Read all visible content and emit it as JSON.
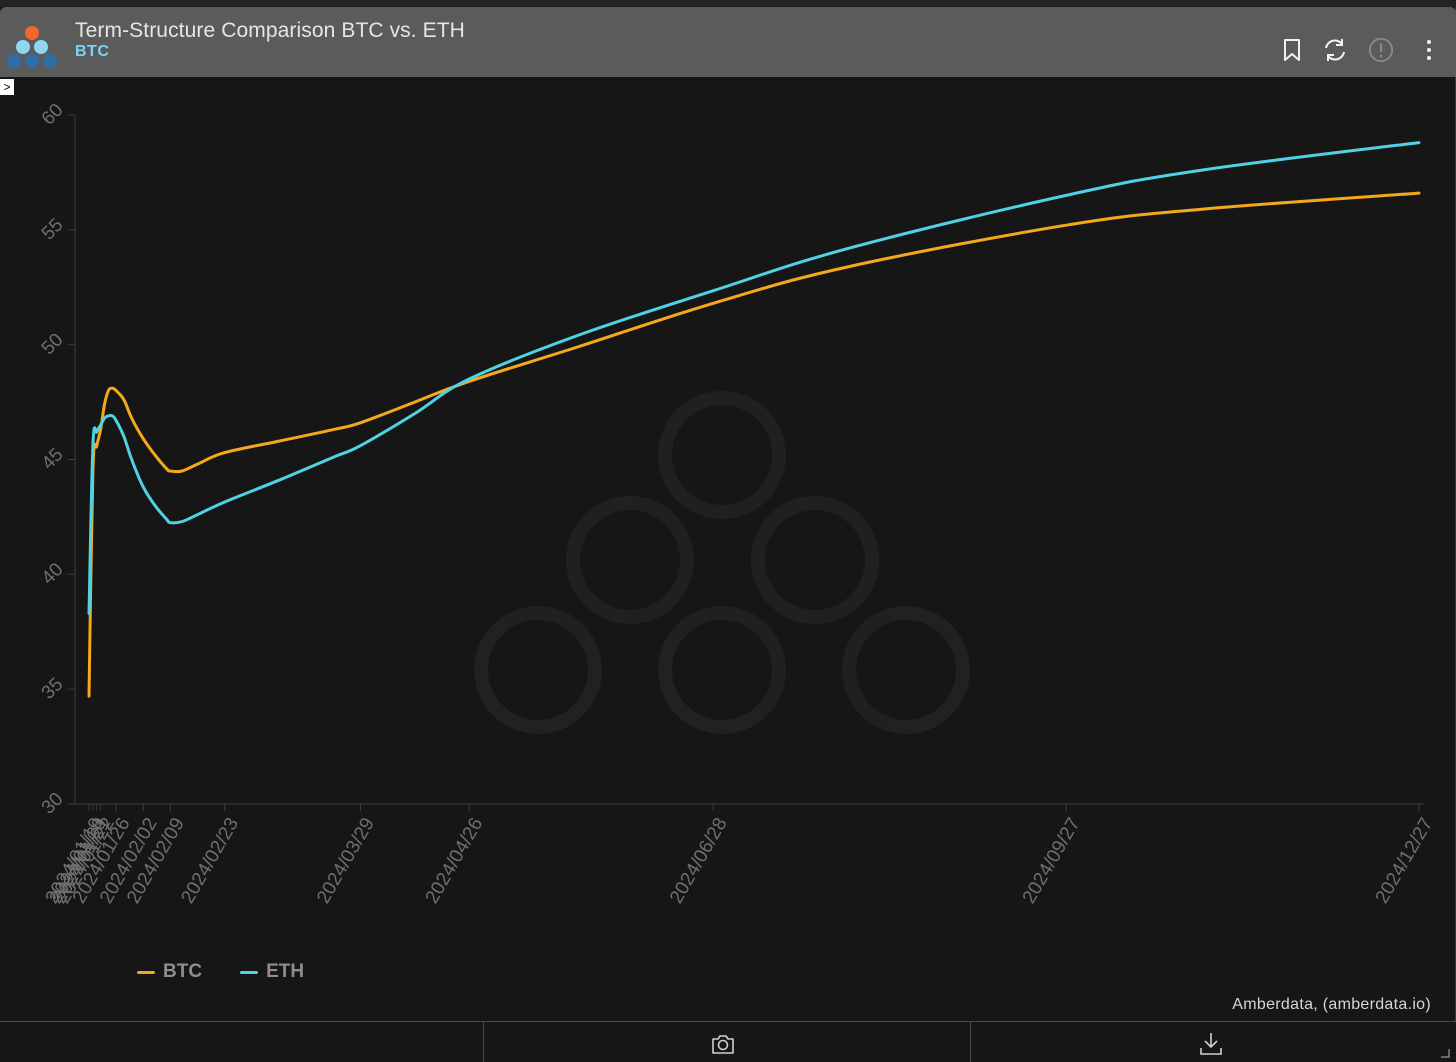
{
  "header": {
    "title": "Term-Structure Comparison BTC vs. ETH",
    "subtitle": "BTC"
  },
  "icons": {
    "logo": "amberdata-logo-icon",
    "bookmark": "bookmark-icon",
    "refresh": "refresh-icon",
    "info": "alert-circle-icon",
    "menu": "more-vertical-icon",
    "camera": "camera-icon",
    "download": "download-icon",
    "toggle": "chevron-right-icon"
  },
  "toggle_glyph": ">",
  "credit": "Amberdata, (amberdata.io)",
  "colors": {
    "btc": "#f5a81c",
    "eth": "#4fd2e3",
    "background": "#161616",
    "header": "#5b5b5b",
    "axis_text": "#6f6f6f"
  },
  "chart_data": {
    "type": "line",
    "title": "Term-Structure Comparison BTC vs. ETH",
    "xlabel": "",
    "ylabel": "",
    "ylim": [
      30,
      60
    ],
    "yticks": [
      30,
      35,
      40,
      45,
      50,
      55,
      60
    ],
    "x_dense_ticks": [
      "2024/01/19",
      "2024/01/20",
      "2024/01/21",
      "2024/01/22",
      "2024/01/26"
    ],
    "x_ticks": [
      "2024/02/02",
      "2024/02/09",
      "2024/02/23",
      "2024/03/29",
      "2024/04/26",
      "2024/06/28",
      "2024/09/27",
      "2024/12/27"
    ],
    "legend_position": "bottom-left",
    "grid": false,
    "series": [
      {
        "name": "BTC",
        "color": "#f5a81c",
        "points": [
          [
            "2024/01/19",
            34.7
          ],
          [
            "2024/01/20",
            44.5
          ],
          [
            "2024/01/21",
            45.6
          ],
          [
            "2024/01/22",
            46.3
          ],
          [
            "2024/01/23",
            47.4
          ],
          [
            "2024/01/24",
            48.0
          ],
          [
            "2024/01/25",
            48.1
          ],
          [
            "2024/01/26",
            48.0
          ],
          [
            "2024/01/28",
            47.6
          ],
          [
            "2024/01/30",
            46.8
          ],
          [
            "2024/02/02",
            45.9
          ],
          [
            "2024/02/05",
            45.2
          ],
          [
            "2024/02/08",
            44.6
          ],
          [
            "2024/02/09",
            44.5
          ],
          [
            "2024/02/12",
            44.5
          ],
          [
            "2024/02/16",
            44.8
          ],
          [
            "2024/02/23",
            45.3
          ],
          [
            "2024/03/08",
            45.8
          ],
          [
            "2024/03/22",
            46.3
          ],
          [
            "2024/03/29",
            46.6
          ],
          [
            "2024/04/12",
            47.5
          ],
          [
            "2024/04/26",
            48.4
          ],
          [
            "2024/05/24",
            49.9
          ],
          [
            "2024/06/28",
            51.8
          ],
          [
            "2024/08/02",
            53.4
          ],
          [
            "2024/09/27",
            55.2
          ],
          [
            "2024/11/01",
            55.9
          ],
          [
            "2024/12/27",
            56.6
          ]
        ]
      },
      {
        "name": "ETH",
        "color": "#4fd2e3",
        "points": [
          [
            "2024/01/19",
            38.3
          ],
          [
            "2024/01/20",
            45.6
          ],
          [
            "2024/01/21",
            46.2
          ],
          [
            "2024/01/22",
            46.5
          ],
          [
            "2024/01/23",
            46.8
          ],
          [
            "2024/01/24",
            46.9
          ],
          [
            "2024/01/25",
            46.9
          ],
          [
            "2024/01/26",
            46.7
          ],
          [
            "2024/01/28",
            46.0
          ],
          [
            "2024/01/30",
            45.0
          ],
          [
            "2024/02/02",
            43.8
          ],
          [
            "2024/02/05",
            43.0
          ],
          [
            "2024/02/08",
            42.4
          ],
          [
            "2024/02/09",
            42.25
          ],
          [
            "2024/02/12",
            42.3
          ],
          [
            "2024/02/16",
            42.6
          ],
          [
            "2024/02/23",
            43.15
          ],
          [
            "2024/03/08",
            44.1
          ],
          [
            "2024/03/22",
            45.1
          ],
          [
            "2024/03/29",
            45.6
          ],
          [
            "2024/04/12",
            47.0
          ],
          [
            "2024/04/26",
            48.5
          ],
          [
            "2024/05/24",
            50.4
          ],
          [
            "2024/06/28",
            52.35
          ],
          [
            "2024/08/02",
            54.2
          ],
          [
            "2024/09/27",
            56.5
          ],
          [
            "2024/11/01",
            57.6
          ],
          [
            "2024/12/27",
            58.8
          ]
        ]
      }
    ]
  }
}
